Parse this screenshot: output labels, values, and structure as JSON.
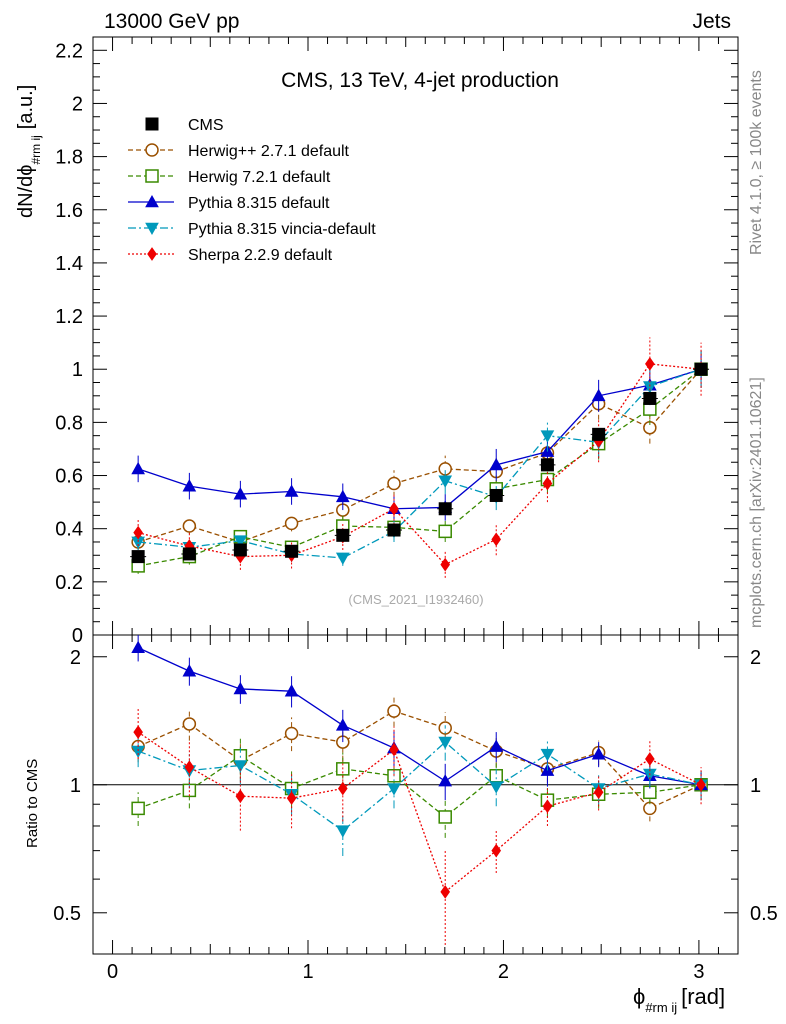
{
  "header": {
    "left": "13000 GeV pp",
    "right": "Jets"
  },
  "side_labels": {
    "rivet": "Rivet 4.1.0, ≥ 100k events",
    "mcplots": "mcplots.cern.ch [arXiv:2401.10621]"
  },
  "chart_data": {
    "type": "line",
    "title": "CMS, 13 TeV, 4-jet production",
    "watermark": "(CMS_2021_I1932460)",
    "xlabel": "ϕ",
    "xlabel_sub": "#rm ij",
    "xlabel_unit": "[rad]",
    "ylabel_main": "dN/dϕ",
    "ylabel_main_sub": "#rm ij",
    "ylabel_main_unit": "[a.u.]",
    "ylabel_ratio": "Ratio to CMS",
    "xlim": [
      -0.1,
      3.2
    ],
    "ylim_main": [
      0,
      2.25
    ],
    "ylim_ratio": [
      0.4,
      2.25
    ],
    "ratio_scale": "log",
    "x_ticks": [
      "0",
      "1",
      "2",
      "3"
    ],
    "y_ticks_main": [
      "0",
      "0.2",
      "0.4",
      "0.6",
      "0.8",
      "1",
      "1.2",
      "1.4",
      "1.6",
      "1.8",
      "2",
      "2.2"
    ],
    "y_ticks_ratio": [
      "0.5",
      "1",
      "2"
    ],
    "x": [
      0.131,
      0.393,
      0.654,
      0.916,
      1.178,
      1.44,
      1.702,
      1.963,
      2.225,
      2.487,
      2.749,
      3.011
    ],
    "legend_position": "top-left",
    "series": [
      {
        "name": "CMS",
        "color": "#000000",
        "marker": "square-filled",
        "line": "none",
        "values": [
          0.295,
          0.305,
          0.32,
          0.315,
          0.375,
          0.395,
          0.475,
          0.525,
          0.64,
          0.755,
          0.89,
          1.0
        ],
        "errors": [
          0.02,
          0.02,
          0.02,
          0.02,
          0.02,
          0.02,
          0.02,
          0.02,
          0.02,
          0.02,
          0.02,
          0.02
        ],
        "ratio": [
          1,
          1,
          1,
          1,
          1,
          1,
          1,
          1,
          1,
          1,
          1,
          1
        ],
        "ratio_errors": [
          0,
          0,
          0,
          0,
          0,
          0,
          0,
          0,
          0,
          0,
          0,
          0
        ]
      },
      {
        "name": "Herwig++ 2.7.1 default",
        "color": "#9a5000",
        "marker": "circle-open",
        "line": "dashed",
        "values": [
          0.35,
          0.41,
          0.35,
          0.42,
          0.47,
          0.57,
          0.625,
          0.615,
          0.685,
          0.87,
          0.78,
          1.0
        ],
        "errors": [
          0.03,
          0.03,
          0.03,
          0.03,
          0.04,
          0.05,
          0.05,
          0.05,
          0.05,
          0.06,
          0.06,
          0.07
        ],
        "ratio": [
          1.23,
          1.39,
          1.14,
          1.32,
          1.26,
          1.49,
          1.36,
          1.2,
          1.09,
          1.19,
          0.88,
          1.0
        ],
        "ratio_errors": [
          0.1,
          0.12,
          0.12,
          0.12,
          0.12,
          0.12,
          0.12,
          0.1,
          0.08,
          0.08,
          0.06,
          0.08
        ]
      },
      {
        "name": "Herwig 7.2.1 default",
        "color": "#3a8a00",
        "marker": "square-open",
        "line": "dashed",
        "values": [
          0.26,
          0.295,
          0.37,
          0.33,
          0.41,
          0.405,
          0.39,
          0.55,
          0.585,
          0.72,
          0.85,
          1.0
        ],
        "errors": [
          0.03,
          0.03,
          0.03,
          0.03,
          0.04,
          0.04,
          0.04,
          0.05,
          0.05,
          0.06,
          0.06,
          0.07
        ],
        "ratio": [
          0.88,
          0.97,
          1.17,
          0.98,
          1.09,
          1.05,
          0.84,
          1.05,
          0.92,
          0.95,
          0.96,
          1.0
        ],
        "ratio_errors": [
          0.08,
          0.09,
          0.12,
          0.1,
          0.1,
          0.1,
          0.09,
          0.09,
          0.08,
          0.07,
          0.06,
          0.08
        ]
      },
      {
        "name": "Pythia 8.315 default",
        "color": "#0000cc",
        "marker": "triangle-up-filled",
        "line": "solid",
        "values": [
          0.625,
          0.56,
          0.53,
          0.54,
          0.52,
          0.475,
          0.48,
          0.64,
          0.69,
          0.9,
          0.94,
          1.0
        ],
        "errors": [
          0.05,
          0.05,
          0.05,
          0.05,
          0.05,
          0.05,
          0.05,
          0.06,
          0.06,
          0.06,
          0.07,
          0.07
        ],
        "ratio": [
          2.1,
          1.85,
          1.68,
          1.66,
          1.38,
          1.22,
          1.02,
          1.23,
          1.08,
          1.18,
          1.05,
          1.0
        ],
        "ratio_errors": [
          0.15,
          0.14,
          0.13,
          0.14,
          0.12,
          0.12,
          0.1,
          0.1,
          0.09,
          0.08,
          0.07,
          0.08
        ]
      },
      {
        "name": "Pythia 8.315 vincia-default",
        "color": "#0099bb",
        "marker": "triangle-down-filled",
        "line": "dashdot",
        "values": [
          0.35,
          0.33,
          0.355,
          0.305,
          0.29,
          0.39,
          0.58,
          0.52,
          0.75,
          0.725,
          0.935,
          1.0
        ],
        "errors": [
          0.03,
          0.03,
          0.03,
          0.03,
          0.03,
          0.04,
          0.05,
          0.05,
          0.06,
          0.06,
          0.07,
          0.07
        ],
        "ratio": [
          1.2,
          1.08,
          1.11,
          0.95,
          0.78,
          0.98,
          1.26,
          0.99,
          1.18,
          0.98,
          1.06,
          1.0
        ],
        "ratio_errors": [
          0.1,
          0.1,
          0.11,
          0.1,
          0.1,
          0.1,
          0.12,
          0.1,
          0.1,
          0.08,
          0.07,
          0.08
        ]
      },
      {
        "name": "Sherpa 2.2.9 default",
        "color": "#ee0000",
        "marker": "diamond-filled",
        "line": "dotted",
        "values": [
          0.385,
          0.335,
          0.295,
          0.3,
          0.37,
          0.475,
          0.265,
          0.36,
          0.57,
          0.73,
          1.02,
          1.0
        ],
        "errors": [
          0.05,
          0.05,
          0.05,
          0.05,
          0.05,
          0.06,
          0.05,
          0.06,
          0.07,
          0.08,
          0.1,
          0.1
        ],
        "ratio": [
          1.33,
          1.1,
          0.94,
          0.93,
          0.98,
          1.21,
          0.56,
          0.7,
          0.89,
          0.96,
          1.15,
          1.0
        ],
        "ratio_errors": [
          0.18,
          0.16,
          0.16,
          0.14,
          0.16,
          0.16,
          0.14,
          0.08,
          0.09,
          0.09,
          0.12,
          0.1
        ]
      }
    ]
  }
}
